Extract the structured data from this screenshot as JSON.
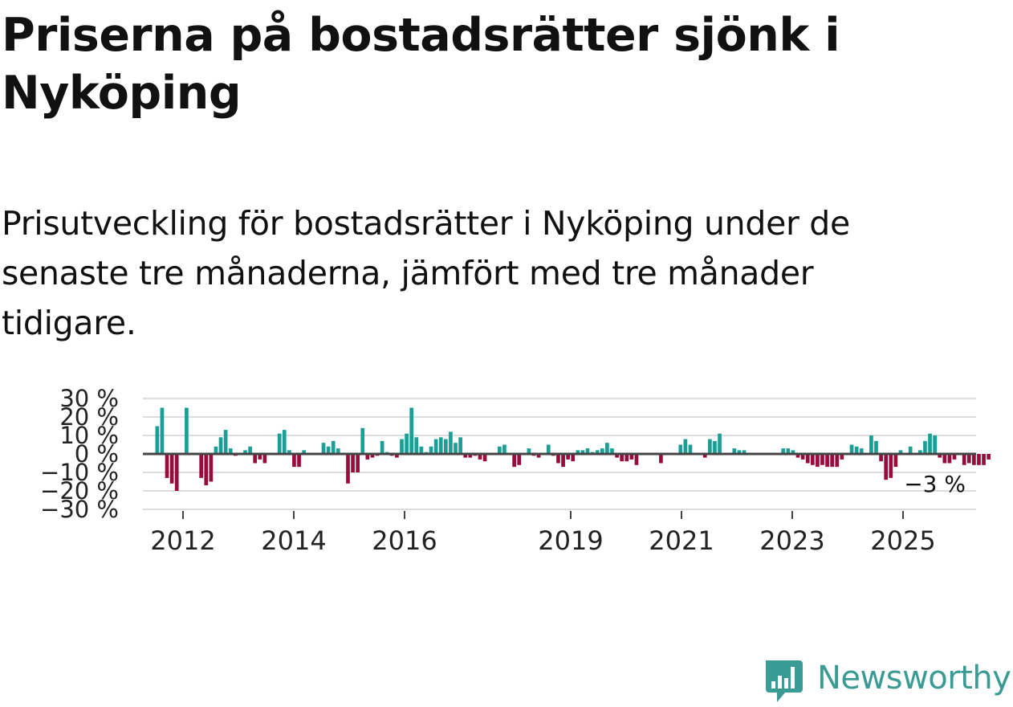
{
  "title": "Priserna på bostadsrätter sjönk i Nyköping",
  "subtitle": "Prisutveckling för bostadsrätter i Nyköping under de senaste tre månaderna, jämfört med tre månader tidigare.",
  "brand": {
    "name": "Newsworthy",
    "color": "#3a9a94"
  },
  "colors": {
    "positive": "#1a9e96",
    "negative": "#9b0a3c",
    "grid": "#dddddd",
    "zero": "#444444",
    "text": "#222222"
  },
  "chart_data": {
    "type": "bar",
    "title": "Priserna på bostadsrätter sjönk i Nyköping",
    "ylabel": "",
    "xlabel": "",
    "ylim": [
      -30,
      30
    ],
    "yticks": [
      30,
      20,
      10,
      0,
      -10,
      -20,
      -30
    ],
    "ytick_labels": [
      "30 %",
      "20 %",
      "10 %",
      "0 %",
      "−10 %",
      "−20 %",
      "−30 %"
    ],
    "xticks": [
      2012,
      2014,
      2016,
      2019,
      2021,
      2023,
      2025
    ],
    "x_start": 2011.5,
    "x_end": 2026.6,
    "annotation": {
      "text": "−3 %",
      "value": -3
    },
    "values": [
      15,
      25,
      -13,
      -16,
      -20,
      0,
      25,
      0,
      0,
      -13,
      -17,
      -15,
      4,
      9,
      13,
      3,
      -1,
      0,
      2,
      4,
      -5,
      -3,
      -5,
      0,
      0,
      11,
      13,
      2,
      -7,
      -7,
      2,
      0,
      0,
      0,
      6,
      4,
      7,
      3,
      0,
      -16,
      -10,
      -10,
      14,
      -3,
      -2,
      -1,
      7,
      1,
      -1,
      -2,
      8,
      11,
      25,
      9,
      4,
      1,
      4,
      8,
      9,
      8,
      12,
      6,
      9,
      -2,
      -2,
      -1,
      -3,
      -4,
      0,
      0,
      4,
      5,
      0,
      -7,
      -6,
      0,
      3,
      -1,
      -2,
      0,
      5,
      -1,
      -5,
      -7,
      -3,
      -4,
      2,
      2,
      3,
      1,
      2,
      3,
      6,
      3,
      -2,
      -4,
      -4,
      -3,
      -6,
      0,
      0,
      0,
      0,
      -5,
      0,
      0,
      0,
      5,
      8,
      5,
      0,
      0,
      -2,
      8,
      7,
      11,
      0,
      0,
      3,
      2,
      2,
      0,
      0,
      0,
      0,
      0,
      0,
      0,
      3,
      3,
      2,
      -2,
      -3,
      -5,
      -6,
      -7,
      -6,
      -7,
      -7,
      -7,
      -3,
      0,
      5,
      4,
      3,
      0,
      10,
      7,
      -4,
      -14,
      -13,
      -7,
      2,
      0,
      4,
      0,
      2,
      7,
      11,
      10,
      -2,
      -5,
      -5,
      -3,
      0,
      -6,
      -5,
      -6,
      -6,
      -6,
      -3
    ]
  }
}
